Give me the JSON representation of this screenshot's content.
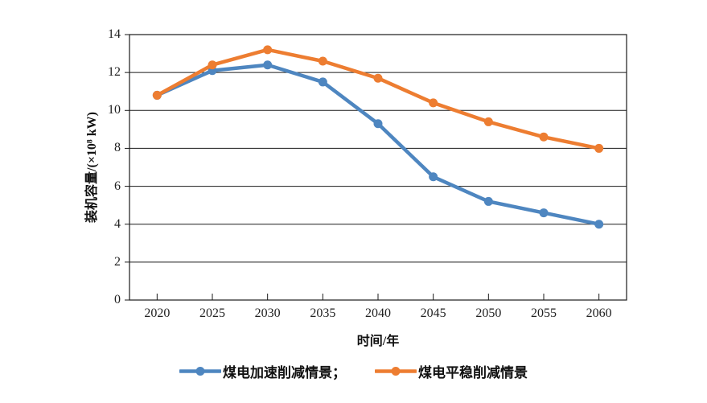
{
  "chart_data": {
    "type": "line",
    "title": "",
    "xlabel": "时间/年",
    "ylabel": "装机容量/(×10⁸ kW)",
    "categories": [
      "2020",
      "2025",
      "2030",
      "2035",
      "2040",
      "2045",
      "2050",
      "2055",
      "2060"
    ],
    "ylim": [
      0,
      14
    ],
    "yticks": [
      0,
      2,
      4,
      6,
      8,
      10,
      12,
      14
    ],
    "grid": "horizontal",
    "legend_position": "bottom-center",
    "axis_color": "#1a1a1a",
    "background_color": "#ffffff",
    "series": [
      {
        "name": "煤电加速削减情景",
        "legend_label": "煤电加速削减情景；",
        "color": "#4E86C0",
        "marker": "circle",
        "values": [
          10.8,
          12.1,
          12.4,
          11.5,
          9.3,
          6.5,
          5.2,
          4.6,
          4.0
        ]
      },
      {
        "name": "煤电平稳削减情景",
        "legend_label": "煤电平稳削减情景",
        "color": "#ED7D31",
        "marker": "circle",
        "values": [
          10.8,
          12.4,
          13.2,
          12.6,
          11.7,
          10.4,
          9.4,
          8.6,
          8.0
        ]
      }
    ]
  }
}
